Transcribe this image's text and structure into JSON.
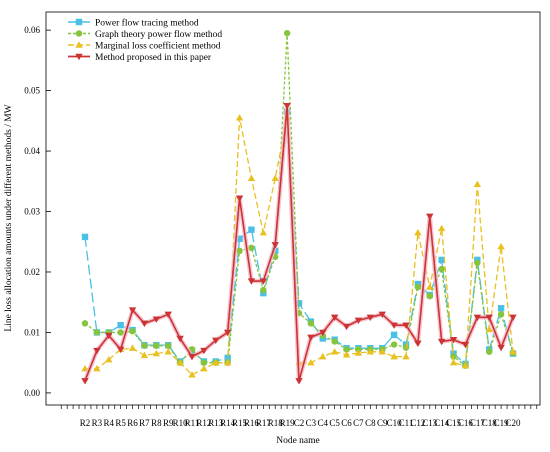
{
  "chart_data": {
    "type": "line",
    "xlabel": "Node name",
    "ylabel": "Line loss allocation amounts under different methods / MW",
    "ylim": [
      -0.002,
      0.063
    ],
    "yticks": [
      0.0,
      0.01,
      0.02,
      0.03,
      0.04,
      0.05,
      0.06
    ],
    "ytick_labels": [
      "0.00",
      "0.01",
      "0.02",
      "0.03",
      "0.04",
      "0.05",
      "0.06"
    ],
    "grid": false,
    "legend_position": "top-left",
    "categories": [
      "R2",
      "R3",
      "R4",
      "R5",
      "R6",
      "R7",
      "R8",
      "R9",
      "R10",
      "R11",
      "R12",
      "R13",
      "R14",
      "R15",
      "R16",
      "R17",
      "R18",
      "R19",
      "C2",
      "C3",
      "C4",
      "C5",
      "C6",
      "C7",
      "C8",
      "C9",
      "C10",
      "C11",
      "C12",
      "C13",
      "C14",
      "C15",
      "C16",
      "C17",
      "C18",
      "C19",
      "C20"
    ],
    "series": [
      {
        "name": "Power flow tracing method",
        "color": "#4ac0e6",
        "dash": "10,4",
        "marker": "square",
        "values": [
          0.0258,
          0.01,
          0.01,
          0.0112,
          0.0104,
          0.0079,
          0.0079,
          0.0079,
          0.0052,
          0.007,
          0.0052,
          0.0052,
          0.0058,
          0.0255,
          0.027,
          0.0165,
          0.0235,
          0.0465,
          0.0148,
          0.0118,
          0.009,
          0.0088,
          0.0074,
          0.0074,
          0.0074,
          0.0074,
          0.0096,
          0.008,
          0.018,
          0.0162,
          0.022,
          0.0065,
          0.0048,
          0.022,
          0.0072,
          0.014,
          0.0065
        ]
      },
      {
        "name": "Graph theory power flow method",
        "color": "#86c43d",
        "dash": "3,2",
        "marker": "circle",
        "values": [
          0.0115,
          0.01,
          0.01,
          0.01,
          0.0102,
          0.0078,
          0.0078,
          0.0078,
          0.005,
          0.0072,
          0.005,
          0.005,
          0.005,
          0.0235,
          0.024,
          0.017,
          0.0225,
          0.0595,
          0.0132,
          0.0115,
          0.0095,
          0.0085,
          0.0072,
          0.0072,
          0.0072,
          0.0072,
          0.008,
          0.0075,
          0.0175,
          0.016,
          0.0205,
          0.006,
          0.0045,
          0.0215,
          0.0068,
          0.013,
          0.0066
        ]
      },
      {
        "name": "Marginal loss coefficient method",
        "color": "#e8c020",
        "dash": "6,3",
        "marker": "triangle",
        "values": [
          0.004,
          0.004,
          0.0055,
          0.0072,
          0.0074,
          0.0062,
          0.0065,
          0.0068,
          0.005,
          0.003,
          0.004,
          0.005,
          0.005,
          0.0455,
          0.0355,
          0.0265,
          0.0355,
          0.0455,
          0.005,
          0.005,
          0.006,
          0.0068,
          0.0063,
          0.0066,
          0.0068,
          0.0068,
          0.006,
          0.006,
          0.0265,
          0.0175,
          0.0272,
          0.005,
          0.0045,
          0.0345,
          0.0105,
          0.0242,
          0.0068
        ]
      },
      {
        "name": "Method proposed in this paper",
        "color": "#cc3333",
        "dash": "",
        "marker": "triangle-down",
        "values": [
          0.002,
          0.007,
          0.0095,
          0.0072,
          0.0137,
          0.0115,
          0.0122,
          0.013,
          0.009,
          0.006,
          0.007,
          0.0087,
          0.01,
          0.0322,
          0.0185,
          0.0185,
          0.0245,
          0.0475,
          0.002,
          0.0092,
          0.01,
          0.0125,
          0.011,
          0.012,
          0.0125,
          0.013,
          0.0112,
          0.0112,
          0.0082,
          0.0292,
          0.0085,
          0.0088,
          0.008,
          0.0125,
          0.0125,
          0.0075,
          0.0125
        ]
      }
    ]
  }
}
